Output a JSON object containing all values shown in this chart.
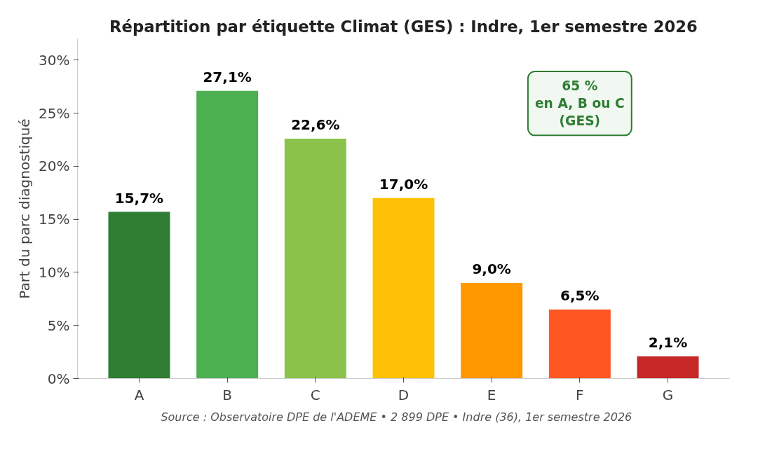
{
  "chart_data": {
    "type": "bar",
    "title": "Répartition par étiquette Climat (GES) : Indre, 1er semestre 2026",
    "ylabel": "Part du parc diagnostiqué",
    "categories": [
      "A",
      "B",
      "C",
      "D",
      "E",
      "F",
      "G"
    ],
    "values": [
      15.7,
      27.1,
      22.6,
      17.0,
      9.0,
      6.5,
      2.1
    ],
    "colors": [
      "#2e7d32",
      "#4caf50",
      "#8bc34a",
      "#ffc107",
      "#ff9800",
      "#ff5722",
      "#c62828"
    ],
    "value_labels": [
      "15,7%",
      "27,1%",
      "22,6%",
      "17,0%",
      "9,0%",
      "6,5%",
      "2,1%"
    ],
    "ylim": [
      0,
      32
    ],
    "yticks": [
      {
        "value": 0,
        "label": "0%"
      },
      {
        "value": 5,
        "label": "5%"
      },
      {
        "value": 10,
        "label": "10%"
      },
      {
        "value": 15,
        "label": "15%"
      },
      {
        "value": 20,
        "label": "20%"
      },
      {
        "value": 25,
        "label": "25%"
      },
      {
        "value": 30,
        "label": "30%"
      }
    ],
    "grid": false,
    "annotations": [
      "65 %\nen A, B ou C\n(GES)",
      "Source : Observatoire DPE de l'ADEME  •  2 899 DPE  •  Indre (36), 1er semestre 2026"
    ]
  }
}
